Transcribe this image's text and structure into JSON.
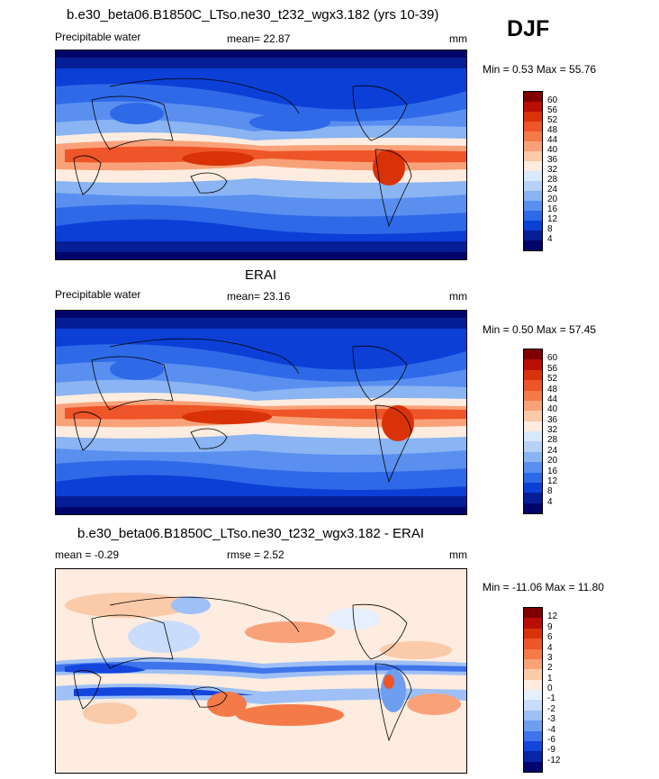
{
  "season": "DJF",
  "panels": [
    {
      "title": "b.e30_beta06.B1850C_LTso.ne30_t232_wgx3.182 (yrs 10-39)",
      "left_label": "Precipitable water",
      "center_label": "mean=  22.87",
      "units": "mm",
      "minmax": "Min =   0.53 Max =  55.76",
      "colorbar": {
        "labels": [
          "60",
          "56",
          "52",
          "48",
          "44",
          "40",
          "36",
          "32",
          "28",
          "24",
          "20",
          "16",
          "12",
          "8",
          "4"
        ],
        "colors": [
          "#800000",
          "#b80e05",
          "#d93208",
          "#ee5528",
          "#f47a48",
          "#f9a27a",
          "#fbcaa8",
          "#fdecdf",
          "#d9e8fb",
          "#b7d1f7",
          "#8ab4f2",
          "#5a8ff0",
          "#2e69e8",
          "#0b3fd6",
          "#051e96",
          "#01056a"
        ]
      },
      "palette": "pw"
    },
    {
      "title": "ERAI",
      "left_label": "Precipitable water",
      "center_label": "mean=  23.16",
      "units": "mm",
      "minmax": "Min =   0.50 Max =  57.45",
      "colorbar": {
        "labels": [
          "60",
          "56",
          "52",
          "48",
          "44",
          "40",
          "36",
          "32",
          "28",
          "24",
          "20",
          "16",
          "12",
          "8",
          "4"
        ],
        "colors": [
          "#800000",
          "#b80e05",
          "#d93208",
          "#ee5528",
          "#f47a48",
          "#f9a27a",
          "#fbcaa8",
          "#fdecdf",
          "#d9e8fb",
          "#b7d1f7",
          "#8ab4f2",
          "#5a8ff0",
          "#2e69e8",
          "#0b3fd6",
          "#051e96",
          "#01056a"
        ]
      },
      "palette": "pw"
    },
    {
      "title": "b.e30_beta06.B1850C_LTso.ne30_t232_wgx3.182 - ERAI",
      "left_label": "mean =  -0.29",
      "center_label": "rmse =   2.52",
      "units": "mm",
      "minmax": "Min = -11.06 Max =  11.80",
      "colorbar": {
        "labels": [
          "12",
          "9",
          "6",
          "4",
          "3",
          "2",
          "1",
          "0",
          "-1",
          "-2",
          "-3",
          "-4",
          "-6",
          "-9",
          "-12"
        ],
        "colors": [
          "#800000",
          "#b80e05",
          "#d93208",
          "#ee5528",
          "#f47a48",
          "#f9a27a",
          "#fbcaa8",
          "#fdecdf",
          "#e6effd",
          "#c9dcfb",
          "#9fc0f6",
          "#6f9ef1",
          "#3f74ea",
          "#1446dc",
          "#0626a6",
          "#01066e"
        ]
      },
      "palette": "diff"
    }
  ]
}
